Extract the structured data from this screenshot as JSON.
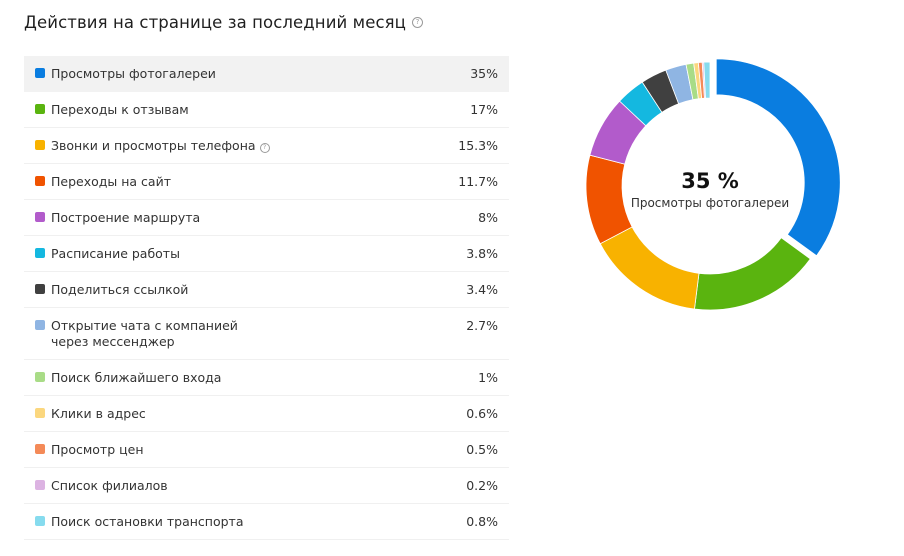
{
  "header": {
    "title": "Действия на странице за последний месяц",
    "help_icon": "question-circle-icon"
  },
  "list": {
    "items": [
      {
        "label": "Просмотры фотогалереи",
        "value": "35%",
        "color": "#0a7de0",
        "active": true
      },
      {
        "label": "Переходы к отзывам",
        "value": "17%",
        "color": "#5ab40f"
      },
      {
        "label": "Звонки и просмотры телефона",
        "value": "15.3%",
        "color": "#f8b200",
        "help": true
      },
      {
        "label": "Переходы на сайт",
        "value": "11.7%",
        "color": "#f05300"
      },
      {
        "label": "Построение маршрута",
        "value": "8%",
        "color": "#b25bcb"
      },
      {
        "label": "Расписание работы",
        "value": "3.8%",
        "color": "#14b8e0"
      },
      {
        "label": "Поделиться ссылкой",
        "value": "3.4%",
        "color": "#404040"
      },
      {
        "label": "Открытие чата с компанией через мессенджер",
        "value": "2.7%",
        "color": "#8fb5e3"
      },
      {
        "label": "Поиск ближайшего входа",
        "value": "1%",
        "color": "#a9dc87"
      },
      {
        "label": "Клики в адрес",
        "value": "0.6%",
        "color": "#fbd77e"
      },
      {
        "label": "Просмотр цен",
        "value": "0.5%",
        "color": "#f48a58"
      },
      {
        "label": "Список филиалов",
        "value": "0.2%",
        "color": "#dcb3e2"
      },
      {
        "label": "Поиск остановки транспорта",
        "value": "0.8%",
        "color": "#86dbee"
      }
    ]
  },
  "donut": {
    "center_value": "35 %",
    "center_label": "Просмотры фотогалереи"
  },
  "chart_data": {
    "type": "pie",
    "variant": "donut",
    "title": "Действия на странице за последний месяц",
    "categories": [
      "Просмотры фотогалереи",
      "Переходы к отзывам",
      "Звонки и просмотры телефона",
      "Переходы на сайт",
      "Построение маршрута",
      "Расписание работы",
      "Поделиться ссылкой",
      "Открытие чата с компанией через мессенджер",
      "Поиск ближайшего входа",
      "Клики в адрес",
      "Просмотр цен",
      "Список филиалов",
      "Поиск остановки транспорта"
    ],
    "values": [
      35,
      17,
      15.3,
      11.7,
      8,
      3.8,
      3.4,
      2.7,
      1,
      0.6,
      0.5,
      0.2,
      0.8
    ],
    "colors": [
      "#0a7de0",
      "#5ab40f",
      "#f8b200",
      "#f05300",
      "#b25bcb",
      "#14b8e0",
      "#404040",
      "#8fb5e3",
      "#a9dc87",
      "#fbd77e",
      "#f48a58",
      "#dcb3e2",
      "#86dbee"
    ],
    "unit": "%",
    "highlighted": "Просмотры фотогалереи",
    "legend_position": "left"
  }
}
